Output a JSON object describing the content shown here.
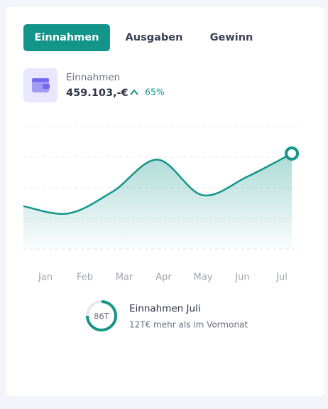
{
  "tabs": [
    "Einnahmen",
    "Ausgaben",
    "Gewinn"
  ],
  "summary": {
    "label": "Einnahmen",
    "amount": "459.103,-€",
    "change": "65%"
  },
  "chart_data": {
    "type": "line",
    "categories": [
      "Jan",
      "Feb",
      "Mar",
      "Apr",
      "May",
      "Jun",
      "Jul"
    ],
    "values": [
      35,
      29,
      47,
      73,
      44,
      59,
      78
    ],
    "color": "#14958a",
    "ylim": [
      0,
      100
    ],
    "yticks": [
      0,
      25,
      50,
      75,
      100
    ],
    "grid": true
  },
  "footer": {
    "badge": "86T",
    "title": "Einnahmen Juli",
    "subtitle": "12T€ mehr als im Vormonat"
  }
}
